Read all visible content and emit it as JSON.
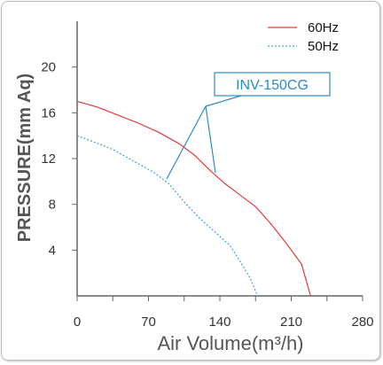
{
  "chart_data": {
    "type": "line",
    "title": "",
    "xlabel": "Air Volume(m³/h)",
    "ylabel": "PRESSURE(mm Aq)",
    "xlim": [
      0,
      280
    ],
    "ylim": [
      0,
      24
    ],
    "x_ticks": [
      "0",
      "70",
      "140",
      "210",
      "280"
    ],
    "y_ticks": [
      "4",
      "8",
      "12",
      "16",
      "20"
    ],
    "grid": false,
    "legend_position": "top-right",
    "model_label": "INV-150CG",
    "series": [
      {
        "name": "60Hz",
        "color": "#e03a3a",
        "style": "solid",
        "points": [
          [
            0,
            17.0
          ],
          [
            20,
            16.5
          ],
          [
            40,
            15.8
          ],
          [
            60,
            15.1
          ],
          [
            80,
            14.3
          ],
          [
            100,
            13.3
          ],
          [
            115,
            12.3
          ],
          [
            130,
            11.0
          ],
          [
            145,
            9.8
          ],
          [
            160,
            8.8
          ],
          [
            175,
            7.8
          ],
          [
            190,
            6.3
          ],
          [
            205,
            4.6
          ],
          [
            220,
            2.8
          ],
          [
            229,
            0
          ]
        ]
      },
      {
        "name": "50Hz",
        "color": "#3aa0d8",
        "style": "dotted",
        "points": [
          [
            0,
            14.0
          ],
          [
            15,
            13.5
          ],
          [
            35,
            12.8
          ],
          [
            55,
            11.8
          ],
          [
            75,
            10.8
          ],
          [
            90,
            9.8
          ],
          [
            105,
            8.2
          ],
          [
            120,
            6.8
          ],
          [
            135,
            5.6
          ],
          [
            150,
            4.4
          ],
          [
            160,
            3.0
          ],
          [
            170,
            1.5
          ],
          [
            177,
            0
          ]
        ]
      }
    ]
  }
}
